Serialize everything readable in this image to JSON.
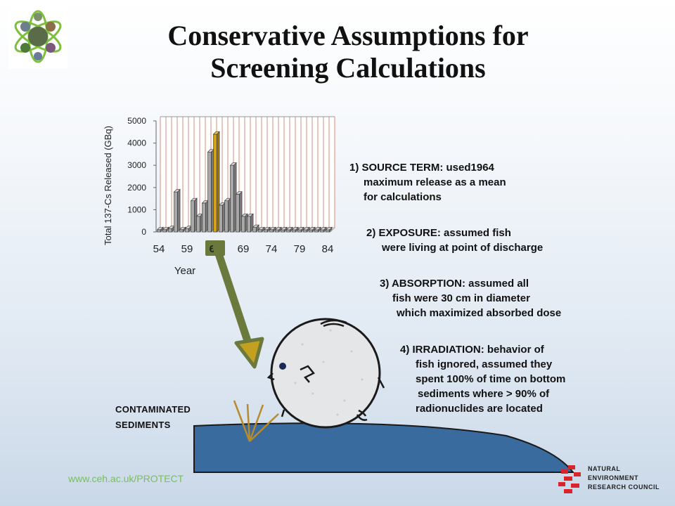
{
  "title": {
    "line1": "Conservative Assumptions for",
    "line2": "Screening Calculations"
  },
  "logo": {
    "icon": "atom-photo-collage-logo"
  },
  "chart_data": {
    "type": "bar",
    "ylabel": "Total 137-Cs Released (GBq)",
    "xlabel": "Year",
    "ylim": [
      0,
      5000
    ],
    "yticks": [
      0,
      1000,
      2000,
      3000,
      4000,
      5000
    ],
    "xtick_labels": [
      "54",
      "59",
      "64",
      "69",
      "74",
      "79",
      "84"
    ],
    "highlight_label": "64",
    "categories": [
      "54",
      "55",
      "56",
      "57",
      "58",
      "59",
      "60",
      "61",
      "62",
      "63",
      "64",
      "65",
      "66",
      "67",
      "68",
      "69",
      "70",
      "71",
      "72",
      "73",
      "74",
      "75",
      "76",
      "77",
      "78",
      "79",
      "80",
      "81",
      "82",
      "83",
      "84"
    ],
    "values": [
      100,
      100,
      150,
      1800,
      100,
      150,
      1400,
      700,
      1300,
      3600,
      4400,
      1200,
      1400,
      3000,
      1700,
      700,
      700,
      200,
      100,
      100,
      100,
      50,
      50,
      50,
      50,
      50,
      50,
      50,
      50,
      50,
      50
    ],
    "highlight_category": "64",
    "colors": {
      "bar": "#a8a8a8",
      "highlight": "#d4a017",
      "grid": "#d98b7a"
    }
  },
  "points": [
    {
      "lines": [
        "1) SOURCE TERM: used1964",
        "maximum release as a mean",
        "for calculations"
      ]
    },
    {
      "lines": [
        "2) EXPOSURE: assumed fish",
        "were living at point of discharge"
      ]
    },
    {
      "lines": [
        "3) ABSORPTION: assumed all",
        "fish were 30 cm in diameter",
        "which maximized absorbed dose"
      ]
    },
    {
      "lines": [
        "4) IRRADIATION: behavior of",
        "fish ignored, assumed they",
        "spent 100% of time on bottom",
        "sediments where > 90% of",
        "radionuclides are located"
      ]
    }
  ],
  "sediments": {
    "line1": "CONTAMINATED",
    "line2": "SEDIMENTS"
  },
  "footer": {
    "url": "www.ceh.ac.uk/PROTECT"
  },
  "nerc": {
    "line1": "NATURAL",
    "line2": "ENVIRONMENT",
    "line3": "RESEARCH COUNCIL",
    "icon": "nerc-red-logo-icon"
  },
  "colors": {
    "sediment": "#3a6b9e",
    "arrow": "#6b7a3c",
    "fish": "#e4e6e8",
    "rays": "#b88a2a"
  }
}
